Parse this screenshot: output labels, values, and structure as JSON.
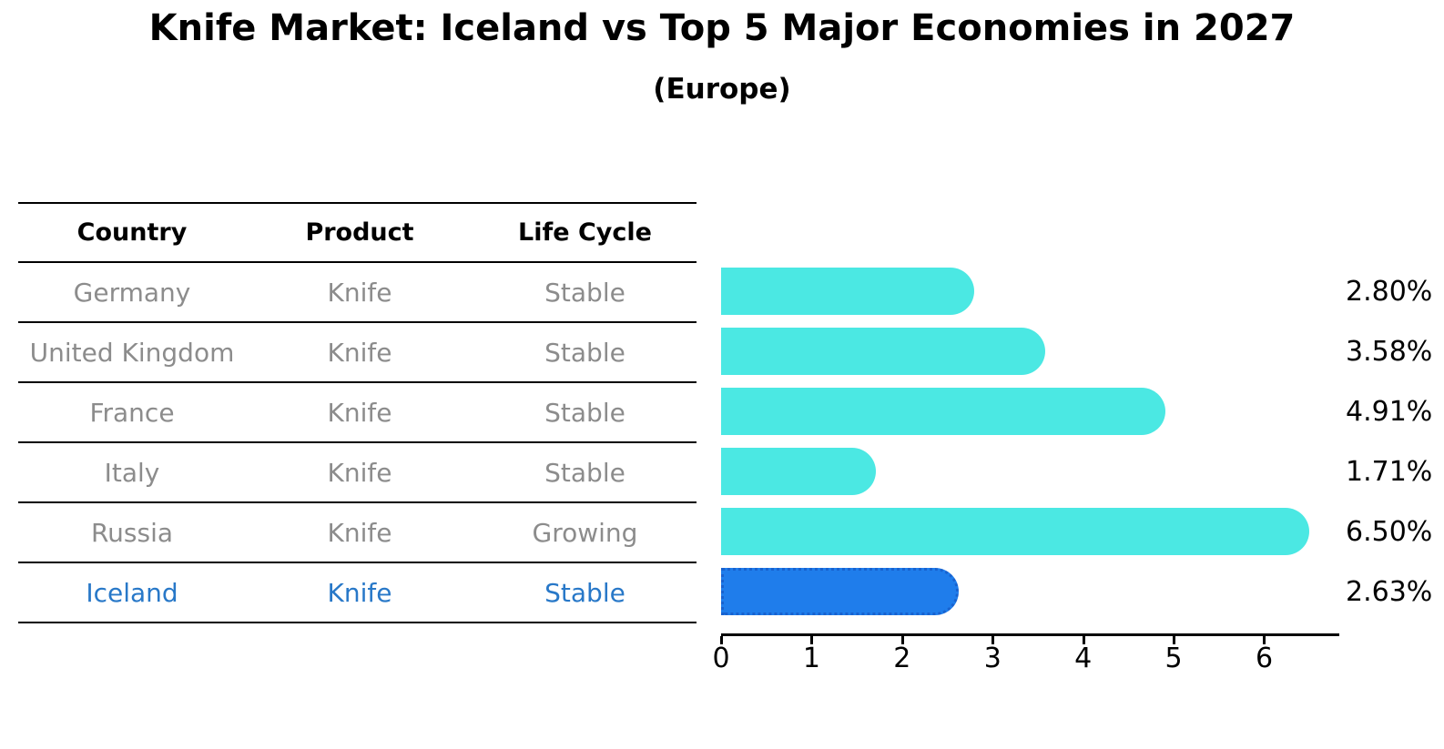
{
  "title": "Knife Market: Iceland vs Top 5 Major Economies in 2027",
  "subtitle": "(Europe)",
  "table": {
    "headers": [
      "Country",
      "Product",
      "Life Cycle"
    ]
  },
  "chart_data": {
    "type": "bar",
    "orientation": "horizontal",
    "title": "Knife Market: Iceland vs Top 5 Major Economies in 2027",
    "subtitle": "(Europe)",
    "categories": [
      "Germany",
      "United Kingdom",
      "France",
      "Italy",
      "Russia",
      "Iceland"
    ],
    "values": [
      2.8,
      3.58,
      4.91,
      1.71,
      6.5,
      2.63
    ],
    "value_labels": [
      "2.80%",
      "3.58%",
      "4.91%",
      "1.71%",
      "6.50%",
      "2.63%"
    ],
    "rows": [
      {
        "country": "Germany",
        "product": "Knife",
        "life_cycle": "Stable",
        "value": 2.8,
        "label": "2.80%",
        "highlight": false
      },
      {
        "country": "United Kingdom",
        "product": "Knife",
        "life_cycle": "Stable",
        "value": 3.58,
        "label": "3.58%",
        "highlight": false
      },
      {
        "country": "France",
        "product": "Knife",
        "life_cycle": "Stable",
        "value": 4.91,
        "label": "4.91%",
        "highlight": false
      },
      {
        "country": "Italy",
        "product": "Knife",
        "life_cycle": "Stable",
        "value": 1.71,
        "label": "1.71%",
        "highlight": false
      },
      {
        "country": "Russia",
        "product": "Knife",
        "life_cycle": "Growing",
        "value": 6.5,
        "label": "6.50%",
        "highlight": false
      },
      {
        "country": "Iceland",
        "product": "Knife",
        "life_cycle": "Stable",
        "value": 2.63,
        "label": "2.63%",
        "highlight": true
      }
    ],
    "x_ticks": [
      "0",
      "1",
      "2",
      "3",
      "4",
      "5",
      "6"
    ],
    "xlim": [
      0,
      6.83
    ],
    "legend": "none",
    "grid": false,
    "colors": {
      "bar": "#4BE8E3",
      "highlight_bar": "#1F7DEB",
      "highlight_bar_border": "#1862CF",
      "row_text": "#8c8c8c",
      "highlight_text": "#2878c8",
      "axis": "#000000"
    }
  }
}
